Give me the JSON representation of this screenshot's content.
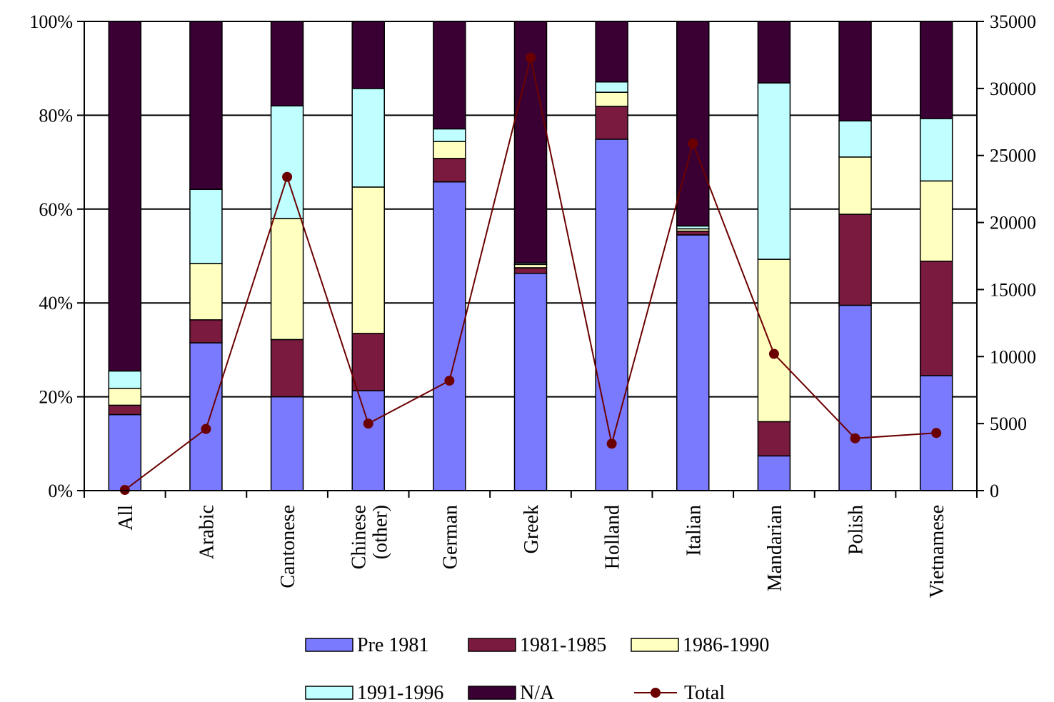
{
  "chart_data": {
    "type": "bar",
    "stacked": true,
    "categories": [
      "All",
      "Arabic",
      "Cantonese",
      "Chinese (other)",
      "German",
      "Greek",
      "Holland",
      "Italian",
      "Mandarian",
      "Polish",
      "Vietnamese"
    ],
    "y_left": {
      "range": [
        0,
        100
      ],
      "ticks": [
        0,
        20,
        40,
        60,
        80,
        100
      ],
      "tick_labels": [
        "0%",
        "20%",
        "40%",
        "60%",
        "80%",
        "100%"
      ]
    },
    "y_right": {
      "range": [
        0,
        35000
      ],
      "ticks": [
        0,
        5000,
        10000,
        15000,
        20000,
        25000,
        30000,
        35000
      ],
      "tick_labels": [
        "0",
        "5000",
        "10000",
        "15000",
        "20000",
        "25000",
        "30000",
        "35000"
      ]
    },
    "series": [
      {
        "name": "Pre 1981",
        "color": "#7a7aff",
        "axis": "left",
        "values": [
          16.2,
          31.5,
          20.0,
          21.3,
          65.8,
          46.3,
          74.9,
          54.5,
          7.4,
          39.5,
          24.5
        ]
      },
      {
        "name": "1981-1985",
        "color": "#7a1a3f",
        "axis": "left",
        "values": [
          2.0,
          4.9,
          12.2,
          12.2,
          5.0,
          1.2,
          7.0,
          0.8,
          7.3,
          19.4,
          24.4
        ]
      },
      {
        "name": "1986-1990",
        "color": "#ffffc0",
        "axis": "left",
        "values": [
          3.6,
          12.0,
          25.8,
          31.2,
          3.6,
          0.7,
          3.0,
          0.5,
          34.6,
          12.2,
          17.1
        ]
      },
      {
        "name": "1991-1996",
        "color": "#bfffff",
        "axis": "left",
        "values": [
          3.7,
          15.8,
          24.0,
          21.0,
          2.7,
          0.3,
          2.2,
          0.6,
          37.6,
          7.7,
          13.3
        ]
      },
      {
        "name": "N/A",
        "color": "#3b0033",
        "axis": "left",
        "values": [
          74.5,
          35.8,
          18.0,
          14.3,
          22.9,
          51.5,
          12.9,
          43.6,
          13.1,
          21.2,
          20.7
        ]
      },
      {
        "name": "Total",
        "type": "line",
        "color": "#6b0000",
        "axis": "right",
        "values": [
          50,
          4600,
          23400,
          5000,
          8200,
          32300,
          3500,
          25900,
          10200,
          3900,
          4300
        ]
      }
    ],
    "legend": {
      "position": "bottom",
      "rows": [
        [
          "Pre 1981",
          "1981-1985",
          "1986-1990"
        ],
        [
          "1991-1996",
          "N/A",
          "Total"
        ]
      ]
    },
    "grid": "horizontal"
  }
}
